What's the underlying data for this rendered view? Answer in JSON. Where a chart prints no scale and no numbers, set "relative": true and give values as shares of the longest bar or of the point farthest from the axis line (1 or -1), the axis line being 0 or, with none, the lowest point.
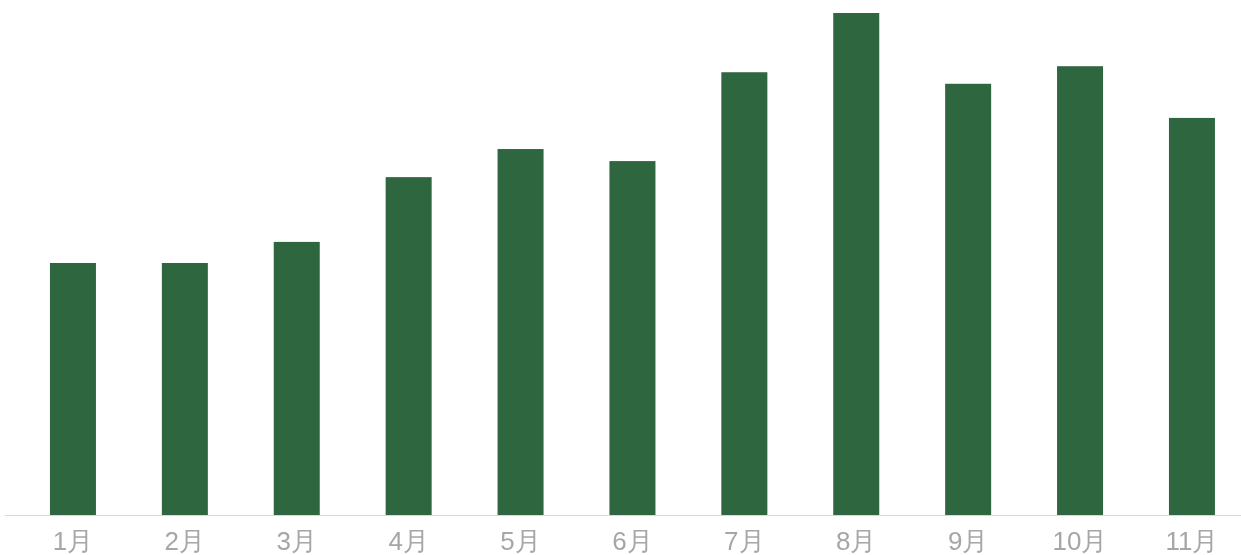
{
  "chart_data": {
    "type": "bar",
    "relative": true,
    "color": "#2e6640",
    "categories": [
      "1月",
      "2月",
      "3月",
      "4月",
      "5月",
      "6月",
      "7月",
      "8月",
      "9月",
      "10月",
      "11月"
    ],
    "values": [
      0.502,
      0.502,
      0.544,
      0.673,
      0.729,
      0.705,
      0.882,
      1,
      0.859,
      0.894,
      0.791
    ]
  }
}
